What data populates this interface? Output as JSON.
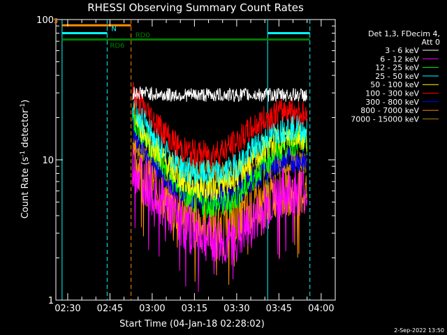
{
  "chart_data": {
    "type": "line",
    "title": "RHESSI Observing Summary Count Rates",
    "xlabel": "Start Time (04-Jan-18 02:28:02)",
    "ylabel_prefix": "Count Rate (s",
    "ylabel_sup1": "-1",
    "ylabel_mid": " detector",
    "ylabel_sup2": "-1",
    "ylabel_suffix": ")",
    "y_scale": "log",
    "ylim": [
      1,
      100
    ],
    "y_ticks": [
      {
        "value": 1,
        "label": "1"
      },
      {
        "value": 10,
        "label": "10"
      },
      {
        "value": 100,
        "label": "100"
      }
    ],
    "x_range_min": [
      -32,
      80
    ],
    "x_ticks": [
      {
        "value": 2,
        "label": "02:30"
      },
      {
        "value": 17,
        "label": "02:45"
      },
      {
        "value": 32,
        "label": "03:00"
      },
      {
        "value": 47,
        "label": "03:15"
      },
      {
        "value": 62,
        "label": "03:30"
      },
      {
        "value": 77,
        "label": "03:45"
      },
      {
        "value": 92,
        "label": "04:00"
      }
    ],
    "x_range": [
      0,
      100
    ],
    "x_unit": "minutes after 02:28:02",
    "legend_header": [
      "Det 1,3, FDecim 4,",
      "Att 0"
    ],
    "legend_placement": "top-right",
    "series": [
      {
        "name": "3 - 6 keV",
        "color": "#ffffff",
        "x": [
          25,
          27,
          30,
          35,
          40,
          45,
          50,
          55,
          60,
          65,
          70,
          75,
          80,
          84,
          87
        ],
        "y": [
          30,
          30,
          30,
          29,
          29,
          29,
          29,
          29,
          29,
          29,
          29,
          29,
          29,
          29,
          29
        ]
      },
      {
        "name": "6 - 12 keV",
        "color": "#ff00ff",
        "x": [
          25,
          28,
          32,
          36,
          40,
          44,
          48,
          52,
          56,
          60,
          64,
          68,
          72,
          76,
          80,
          84,
          87
        ],
        "y": [
          9,
          8,
          6,
          5,
          4,
          3.3,
          3,
          2.8,
          2.6,
          2.6,
          3,
          3.6,
          4.5,
          5.5,
          6,
          6,
          6
        ]
      },
      {
        "name": "12 - 25 keV",
        "color": "#00ff00",
        "x": [
          25,
          28,
          32,
          36,
          40,
          44,
          48,
          52,
          56,
          60,
          64,
          68,
          72,
          76,
          80,
          84,
          87
        ],
        "y": [
          20,
          16,
          12,
          9,
          7,
          5.5,
          5,
          4.8,
          4.8,
          5,
          6,
          7.5,
          9.5,
          11.5,
          13,
          13.5,
          13
        ]
      },
      {
        "name": "25 - 50 keV",
        "color": "#00ffff",
        "x": [
          25,
          28,
          32,
          36,
          40,
          44,
          48,
          52,
          56,
          60,
          64,
          68,
          72,
          76,
          80,
          84,
          87
        ],
        "y": [
          25,
          20,
          15,
          12,
          10,
          8.5,
          8,
          8,
          8,
          8.5,
          10,
          12,
          14,
          16,
          17,
          17,
          16
        ]
      },
      {
        "name": "50 - 100 keV",
        "color": "#ffff00",
        "x": [
          25,
          28,
          32,
          36,
          40,
          44,
          48,
          52,
          56,
          60,
          64,
          68,
          72,
          76,
          80,
          84,
          87
        ],
        "y": [
          22,
          17,
          13,
          10,
          8,
          6.8,
          6.5,
          6.3,
          6.5,
          7,
          8.5,
          10,
          12,
          13.5,
          14.5,
          15,
          14
        ]
      },
      {
        "name": "100 - 300 keV",
        "color": "#ff0000",
        "x": [
          25,
          28,
          32,
          36,
          40,
          44,
          48,
          52,
          56,
          60,
          64,
          68,
          72,
          76,
          80,
          84,
          87
        ],
        "y": [
          30,
          25,
          20,
          16,
          13,
          11.5,
          11,
          11,
          11.5,
          12.5,
          14.5,
          17,
          19.5,
          21.5,
          23,
          22,
          20
        ]
      },
      {
        "name": "300 - 800 keV",
        "color": "#0000ff",
        "x": [
          25,
          28,
          32,
          36,
          40,
          44,
          48,
          52,
          56,
          60,
          64,
          68,
          72,
          76,
          80,
          84,
          87
        ],
        "y": [
          16,
          13,
          10,
          8,
          6.5,
          5.8,
          5.5,
          5.3,
          5.3,
          5.5,
          6.3,
          7.3,
          8.5,
          9.5,
          10,
          10,
          9.5
        ]
      },
      {
        "name": "800 - 7000 keV",
        "color": "#ff8c00",
        "x": [
          25,
          28,
          32,
          36,
          40,
          44,
          48,
          52,
          56,
          60,
          64,
          68,
          72,
          76,
          80,
          84,
          87
        ],
        "y": [
          10,
          9,
          7,
          5.5,
          4.5,
          4,
          3.6,
          3.4,
          3.4,
          3.6,
          4,
          4.6,
          5.2,
          5.8,
          6,
          6,
          6
        ]
      },
      {
        "name": "7000 - 15000 keV",
        "color": "#b8860b",
        "x": [
          25,
          30,
          40,
          50,
          60,
          70,
          80,
          87
        ],
        "y": [
          13,
          11,
          9,
          8,
          8,
          9,
          10,
          10
        ]
      }
    ],
    "markers": [
      {
        "label": "S",
        "color": "#ff8c00",
        "y": 91,
        "segments": [
          [
            0,
            24.5
          ]
        ],
        "label_x": -3
      },
      {
        "label": "N",
        "color": "#00ffff",
        "y": 80,
        "segments": [
          [
            0,
            16
          ],
          [
            73,
            88
          ]
        ],
        "label_x": 17.5
      },
      {
        "label": "RD0",
        "color": "#008000",
        "y": 72,
        "segments": [
          [
            24.5,
            33
          ],
          [
            33,
            67
          ],
          [
            67,
            80
          ],
          [
            80,
            88
          ]
        ],
        "label_x": 26
      },
      {
        "label": "RD6",
        "color": "#008000",
        "y": 72,
        "segments": [
          [
            0,
            24.5
          ]
        ],
        "label_x": 17
      }
    ],
    "vlines": [
      {
        "x": 0,
        "color": "#00ffff",
        "dashed": false
      },
      {
        "x": 16,
        "color": "#00ffff",
        "dashed": true
      },
      {
        "x": 24.5,
        "color": "#ff8c00",
        "dashed": true
      },
      {
        "x": 73,
        "color": "#00ffff",
        "dashed": false
      },
      {
        "x": 88,
        "color": "#00ffff",
        "dashed": true
      }
    ],
    "timestamp": "2-Sep-2022 13:50"
  }
}
